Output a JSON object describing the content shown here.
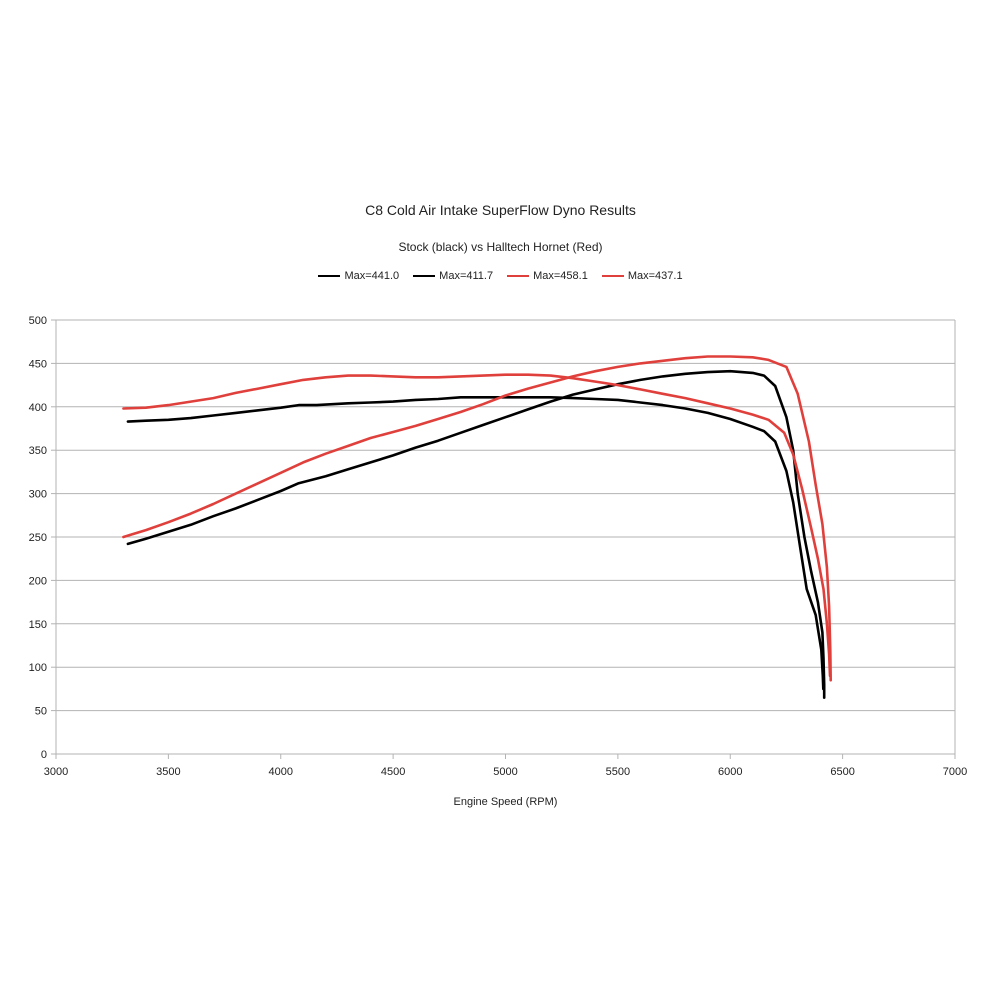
{
  "chart_data": {
    "type": "line",
    "title": "C8 Cold Air Intake SuperFlow Dyno Results",
    "subtitle": "Stock (black) vs Halltech Hornet (Red)",
    "xlabel": "Engine Speed (RPM)",
    "ylabel": "",
    "xlim": [
      3000,
      7000
    ],
    "ylim": [
      0,
      500
    ],
    "xticks": [
      3000,
      3500,
      4000,
      4500,
      5000,
      5500,
      6000,
      6500,
      7000
    ],
    "yticks": [
      0,
      50,
      100,
      150,
      200,
      250,
      300,
      350,
      400,
      450,
      500
    ],
    "grid": "horizontal",
    "legend_position": "top",
    "series": [
      {
        "name": "Max=441.0",
        "color": "#000000",
        "points": [
          [
            3320,
            242
          ],
          [
            3400,
            248
          ],
          [
            3500,
            256
          ],
          [
            3600,
            264
          ],
          [
            3700,
            274
          ],
          [
            3800,
            283
          ],
          [
            3900,
            293
          ],
          [
            4000,
            303
          ],
          [
            4080,
            312
          ],
          [
            4200,
            320
          ],
          [
            4300,
            328
          ],
          [
            4400,
            336
          ],
          [
            4500,
            344
          ],
          [
            4600,
            353
          ],
          [
            4700,
            361
          ],
          [
            4800,
            370
          ],
          [
            4900,
            379
          ],
          [
            5000,
            388
          ],
          [
            5100,
            397
          ],
          [
            5200,
            406
          ],
          [
            5300,
            414
          ],
          [
            5400,
            420
          ],
          [
            5500,
            426
          ],
          [
            5600,
            431
          ],
          [
            5700,
            435
          ],
          [
            5800,
            438
          ],
          [
            5900,
            440
          ],
          [
            6000,
            441
          ],
          [
            6100,
            439
          ],
          [
            6150,
            436
          ],
          [
            6200,
            424
          ],
          [
            6250,
            388
          ],
          [
            6280,
            350
          ],
          [
            6300,
            300
          ],
          [
            6330,
            250
          ],
          [
            6360,
            210
          ],
          [
            6390,
            175
          ],
          [
            6410,
            140
          ],
          [
            6415,
            110
          ],
          [
            6418,
            80
          ],
          [
            6418,
            65
          ]
        ]
      },
      {
        "name": "Max=411.7",
        "color": "#000000",
        "points": [
          [
            3320,
            383
          ],
          [
            3400,
            384
          ],
          [
            3500,
            385
          ],
          [
            3600,
            387
          ],
          [
            3700,
            390
          ],
          [
            3800,
            393
          ],
          [
            3900,
            396
          ],
          [
            4000,
            399
          ],
          [
            4080,
            402
          ],
          [
            4160,
            402
          ],
          [
            4300,
            404
          ],
          [
            4400,
            405
          ],
          [
            4500,
            406
          ],
          [
            4600,
            408
          ],
          [
            4700,
            409
          ],
          [
            4800,
            411
          ],
          [
            4900,
            411
          ],
          [
            5000,
            411
          ],
          [
            5100,
            411
          ],
          [
            5200,
            411
          ],
          [
            5300,
            410
          ],
          [
            5400,
            409
          ],
          [
            5500,
            408
          ],
          [
            5600,
            405
          ],
          [
            5700,
            402
          ],
          [
            5800,
            398
          ],
          [
            5900,
            393
          ],
          [
            6000,
            386
          ],
          [
            6100,
            377
          ],
          [
            6150,
            372
          ],
          [
            6200,
            360
          ],
          [
            6250,
            326
          ],
          [
            6280,
            290
          ],
          [
            6310,
            240
          ],
          [
            6340,
            190
          ],
          [
            6380,
            160
          ],
          [
            6405,
            120
          ],
          [
            6412,
            90
          ],
          [
            6414,
            75
          ]
        ]
      },
      {
        "name": "Max=458.1",
        "color": "#e0403c",
        "points": [
          [
            3300,
            250
          ],
          [
            3400,
            258
          ],
          [
            3500,
            267
          ],
          [
            3600,
            277
          ],
          [
            3700,
            288
          ],
          [
            3800,
            300
          ],
          [
            3900,
            312
          ],
          [
            4000,
            324
          ],
          [
            4100,
            336
          ],
          [
            4200,
            346
          ],
          [
            4300,
            355
          ],
          [
            4400,
            364
          ],
          [
            4500,
            371
          ],
          [
            4600,
            378
          ],
          [
            4700,
            386
          ],
          [
            4800,
            394
          ],
          [
            4900,
            403
          ],
          [
            5000,
            413
          ],
          [
            5100,
            421
          ],
          [
            5200,
            428
          ],
          [
            5300,
            435
          ],
          [
            5400,
            441
          ],
          [
            5500,
            446
          ],
          [
            5600,
            450
          ],
          [
            5700,
            453
          ],
          [
            5800,
            456
          ],
          [
            5900,
            458
          ],
          [
            6000,
            458
          ],
          [
            6100,
            457
          ],
          [
            6170,
            454
          ],
          [
            6250,
            446
          ],
          [
            6300,
            415
          ],
          [
            6350,
            360
          ],
          [
            6380,
            310
          ],
          [
            6410,
            265
          ],
          [
            6430,
            215
          ],
          [
            6440,
            170
          ],
          [
            6445,
            120
          ],
          [
            6447,
            85
          ]
        ]
      },
      {
        "name": "Max=437.1",
        "color": "#e0403c",
        "points": [
          [
            3300,
            398
          ],
          [
            3400,
            399
          ],
          [
            3500,
            402
          ],
          [
            3600,
            406
          ],
          [
            3700,
            410
          ],
          [
            3800,
            416
          ],
          [
            3900,
            421
          ],
          [
            4000,
            426
          ],
          [
            4100,
            431
          ],
          [
            4200,
            434
          ],
          [
            4300,
            436
          ],
          [
            4400,
            436
          ],
          [
            4500,
            435
          ],
          [
            4600,
            434
          ],
          [
            4700,
            434
          ],
          [
            4800,
            435
          ],
          [
            4900,
            436
          ],
          [
            5000,
            437
          ],
          [
            5100,
            437
          ],
          [
            5200,
            436
          ],
          [
            5300,
            433
          ],
          [
            5400,
            429
          ],
          [
            5500,
            425
          ],
          [
            5600,
            420
          ],
          [
            5700,
            415
          ],
          [
            5800,
            410
          ],
          [
            5900,
            404
          ],
          [
            6000,
            398
          ],
          [
            6100,
            391
          ],
          [
            6170,
            385
          ],
          [
            6240,
            370
          ],
          [
            6280,
            345
          ],
          [
            6320,
            305
          ],
          [
            6360,
            260
          ],
          [
            6390,
            225
          ],
          [
            6415,
            190
          ],
          [
            6430,
            150
          ],
          [
            6440,
            115
          ],
          [
            6444,
            90
          ]
        ]
      }
    ]
  }
}
